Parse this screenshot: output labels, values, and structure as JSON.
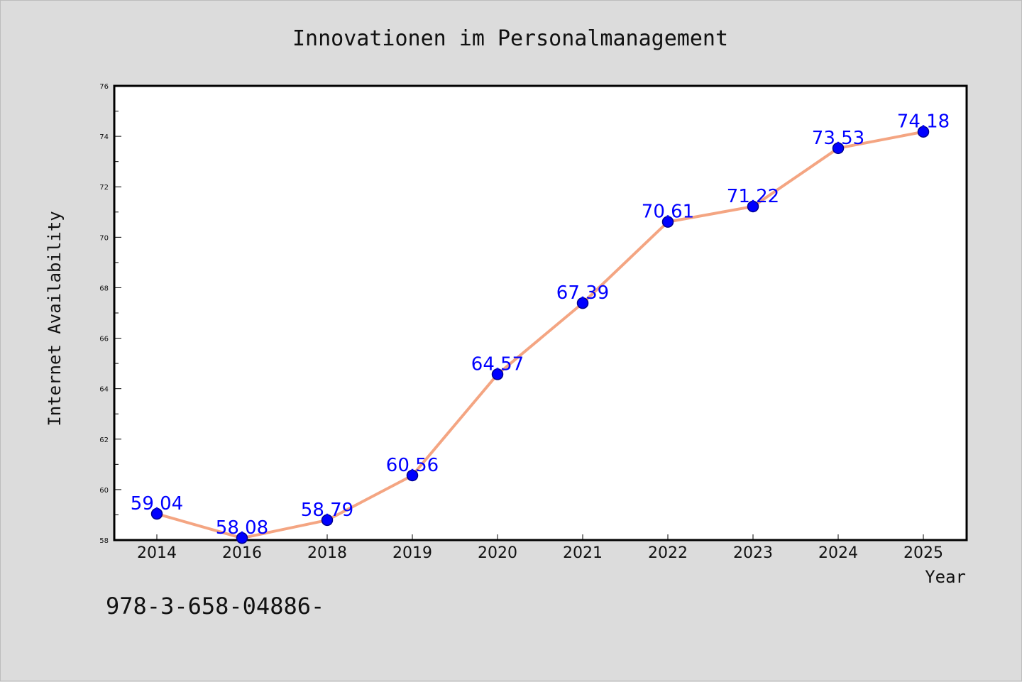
{
  "footer_text": "978-3-658-04886-",
  "chart_data": {
    "type": "line",
    "title": "Innovationen im Personalmanagement",
    "xlabel": "Year",
    "ylabel": "Internet Availability",
    "categories": [
      "2014",
      "2016",
      "2018",
      "2019",
      "2020",
      "2021",
      "2022",
      "2023",
      "2024",
      "2025"
    ],
    "series": [
      {
        "values": [
          59.04,
          58.08,
          58.79,
          60.56,
          64.57,
          67.39,
          70.61,
          71.22,
          73.53,
          74.18
        ],
        "data_labels": [
          "59.04",
          "58.08",
          "58.79",
          "60.56",
          "64.57",
          "67.39",
          "70.61",
          "71.22",
          "73.53",
          "74.18"
        ]
      }
    ],
    "ylim": [
      58,
      76
    ],
    "yticks": [
      "58",
      "60",
      "62",
      "64",
      "66",
      "68",
      "70",
      "72",
      "74",
      "76"
    ],
    "grid": false,
    "legend": "none",
    "colors": {
      "line": "#f4a582",
      "marker": "#0000ff",
      "marker_edge": "#00008b",
      "data_label": "#0000ff"
    }
  }
}
